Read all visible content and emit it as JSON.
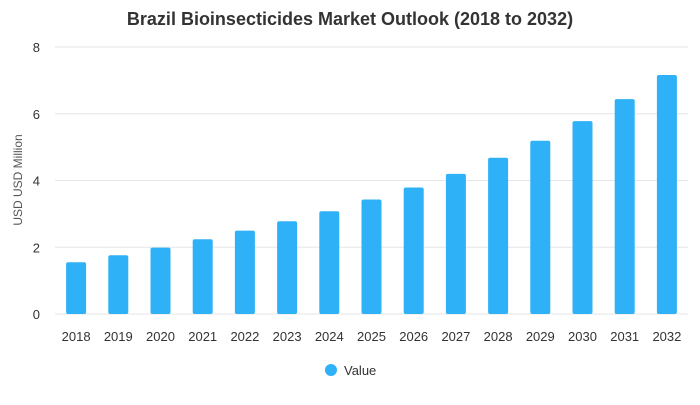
{
  "chart_data": {
    "type": "bar",
    "title": "Brazil Bioinsecticides Market Outlook (2018 to 2032)",
    "xlabel": "",
    "ylabel": "USD USD Million",
    "categories": [
      "2018",
      "2019",
      "2020",
      "2021",
      "2022",
      "2023",
      "2024",
      "2025",
      "2026",
      "2027",
      "2028",
      "2029",
      "2030",
      "2031",
      "2032"
    ],
    "series": [
      {
        "name": "Value",
        "values": [
          1.55,
          1.76,
          1.99,
          2.24,
          2.5,
          2.78,
          3.08,
          3.43,
          3.79,
          4.2,
          4.68,
          5.19,
          5.78,
          6.44,
          7.16
        ]
      }
    ],
    "ylim": [
      0,
      8
    ],
    "yticks": [
      0,
      2,
      4,
      6,
      8
    ],
    "grid": true,
    "legend_position": "bottom",
    "colors": {
      "bar": "#2FB1F7",
      "grid": "#e6e6e6",
      "text": "#333333"
    }
  }
}
